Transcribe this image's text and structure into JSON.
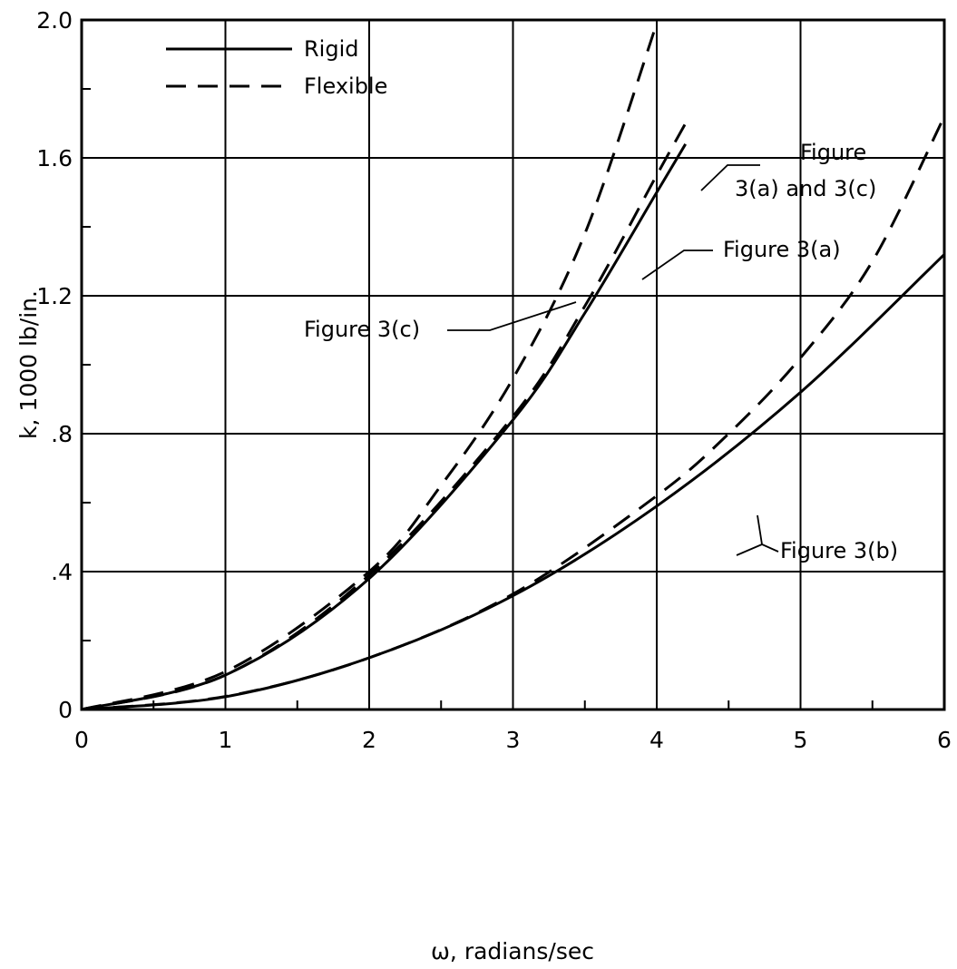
{
  "chart_data": {
    "type": "line",
    "title": "",
    "xlabel": "ω, radians/sec",
    "ylabel": "k, 1000 lb/in.",
    "xlim": [
      0,
      6
    ],
    "ylim": [
      0,
      2.0
    ],
    "grid": true,
    "x_ticks": [
      "0",
      "1",
      "2",
      "3",
      "4",
      "5",
      "6"
    ],
    "y_ticks": [
      "0",
      ".4",
      ".8",
      "1.2",
      "1.6",
      "2.0"
    ],
    "legend": {
      "placement": "top-left",
      "entries": [
        {
          "label": "Rigid",
          "style": "solid"
        },
        {
          "label": "Flexible",
          "style": "dashed"
        }
      ]
    },
    "series": [
      {
        "style": "solid",
        "x": [
          0,
          1,
          2,
          3,
          3.5,
          4,
          4.2
        ],
        "y": [
          0,
          0.1,
          0.38,
          0.84,
          1.15,
          1.5,
          1.64
        ]
      },
      {
        "style": "dashed",
        "x": [
          0,
          1,
          2,
          3,
          3.5,
          4,
          4.2
        ],
        "y": [
          0,
          0.1,
          0.39,
          0.85,
          1.17,
          1.55,
          1.7
        ]
      },
      {
        "style": "dashed",
        "x": [
          0,
          1,
          2,
          2.5,
          3,
          3.5,
          4
        ],
        "y": [
          0,
          0.11,
          0.4,
          0.65,
          0.96,
          1.38,
          1.99
        ]
      },
      {
        "style": "solid",
        "x": [
          0,
          1,
          2,
          3,
          4,
          5,
          6
        ],
        "y": [
          0,
          0.037,
          0.15,
          0.33,
          0.59,
          0.92,
          1.32
        ]
      },
      {
        "style": "dashed",
        "x": [
          0,
          1,
          2,
          3,
          4,
          4.5,
          5,
          5.5,
          6
        ],
        "y": [
          0,
          0.038,
          0.15,
          0.335,
          0.62,
          0.8,
          1.02,
          1.3,
          1.72
        ]
      }
    ],
    "annotations": [
      {
        "lines": [
          "Figure",
          "3(a) and 3(c)"
        ]
      },
      {
        "lines": [
          "Figure 3(a)"
        ]
      },
      {
        "lines": [
          "Figure 3(c)"
        ]
      },
      {
        "lines": [
          "Figure 3(b)"
        ]
      }
    ]
  }
}
